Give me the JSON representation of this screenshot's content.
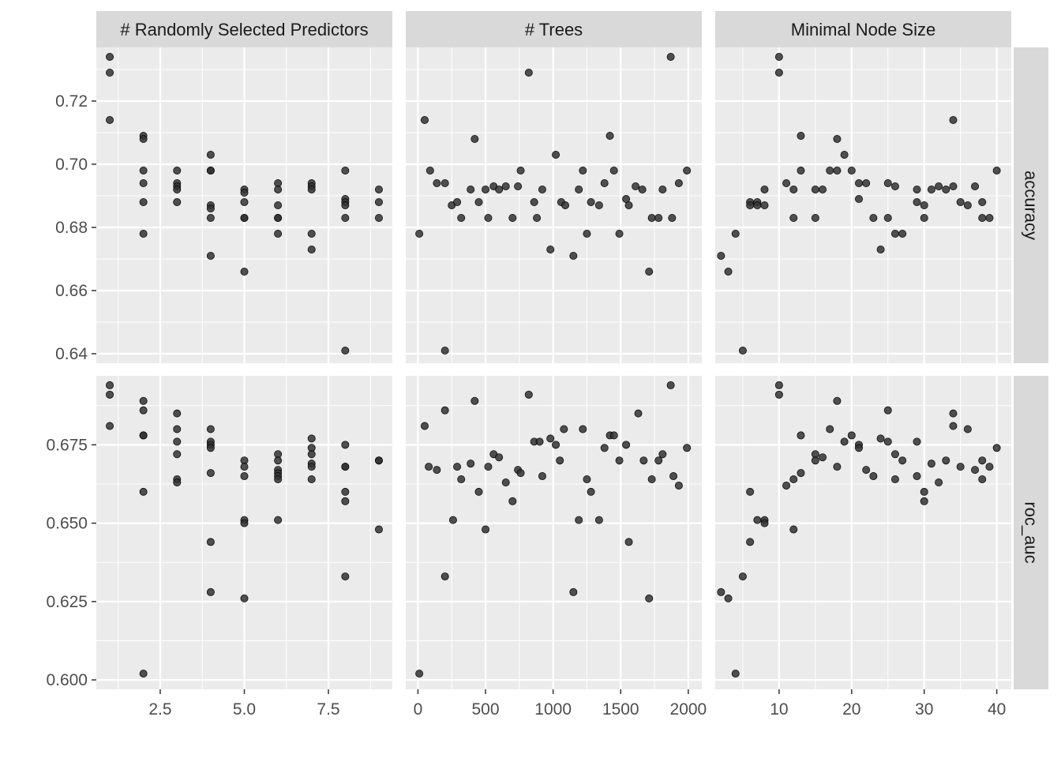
{
  "chart_data": {
    "type": "scatter",
    "facet_columns": [
      "# Randomly Selected Predictors",
      "# Trees",
      "Minimal Node Size"
    ],
    "facet_rows": [
      "accuracy",
      "roc_auc"
    ],
    "x_ticks": [
      [
        "2.5",
        "5.0",
        "7.5"
      ],
      [
        "0",
        "500",
        "1000",
        "1500",
        "2000"
      ],
      [
        "10",
        "20",
        "30",
        "40"
      ]
    ],
    "x_tick_values": [
      [
        2.5,
        5.0,
        7.5
      ],
      [
        0,
        500,
        1000,
        1500,
        2000
      ],
      [
        10,
        20,
        30,
        40
      ]
    ],
    "xlim": [
      [
        0.6,
        9.4
      ],
      [
        -90,
        2100
      ],
      [
        1.2,
        42
      ]
    ],
    "y_ticks": [
      [
        "0.64",
        "0.66",
        "0.68",
        "0.70",
        "0.72"
      ],
      [
        "0.600",
        "0.625",
        "0.650",
        "0.675"
      ]
    ],
    "y_tick_values": [
      [
        0.64,
        0.66,
        0.68,
        0.7,
        0.72
      ],
      [
        0.6,
        0.625,
        0.65,
        0.675
      ]
    ],
    "ylim": [
      [
        0.637,
        0.737
      ],
      [
        0.597,
        0.697
      ]
    ],
    "point_color": "#333333",
    "panel_background": "#ebebeb",
    "strip_background": "#d9d9d9",
    "grid_color": "#ffffff",
    "points": {
      "accuracy": [
        [
          [
            1,
            0.734
          ],
          [
            1,
            0.729
          ],
          [
            1,
            0.714
          ],
          [
            2,
            0.709
          ],
          [
            2,
            0.708
          ],
          [
            2,
            0.698
          ],
          [
            2,
            0.694
          ],
          [
            2,
            0.688
          ],
          [
            2,
            0.678
          ],
          [
            3,
            0.698
          ],
          [
            3,
            0.694
          ],
          [
            3,
            0.693
          ],
          [
            3,
            0.692
          ],
          [
            3,
            0.688
          ],
          [
            4,
            0.703
          ],
          [
            4,
            0.698
          ],
          [
            4,
            0.698
          ],
          [
            4,
            0.687
          ],
          [
            4,
            0.686
          ],
          [
            4,
            0.683
          ],
          [
            4,
            0.671
          ],
          [
            5,
            0.692
          ],
          [
            5,
            0.691
          ],
          [
            5,
            0.688
          ],
          [
            5,
            0.683
          ],
          [
            5,
            0.683
          ],
          [
            5,
            0.666
          ],
          [
            6,
            0.694
          ],
          [
            6,
            0.692
          ],
          [
            6,
            0.687
          ],
          [
            6,
            0.683
          ],
          [
            6,
            0.683
          ],
          [
            6,
            0.678
          ],
          [
            7,
            0.694
          ],
          [
            7,
            0.693
          ],
          [
            7,
            0.692
          ],
          [
            7,
            0.678
          ],
          [
            7,
            0.673
          ],
          [
            8,
            0.698
          ],
          [
            8,
            0.689
          ],
          [
            8,
            0.688
          ],
          [
            8,
            0.687
          ],
          [
            8,
            0.683
          ],
          [
            8,
            0.641
          ],
          [
            9,
            0.692
          ],
          [
            9,
            0.688
          ],
          [
            9,
            0.683
          ]
        ],
        [
          [
            10,
            0.678
          ],
          [
            50,
            0.714
          ],
          [
            90,
            0.698
          ],
          [
            140,
            0.694
          ],
          [
            200,
            0.694
          ],
          [
            200,
            0.641
          ],
          [
            250,
            0.687
          ],
          [
            290,
            0.688
          ],
          [
            320,
            0.683
          ],
          [
            390,
            0.692
          ],
          [
            420,
            0.708
          ],
          [
            450,
            0.688
          ],
          [
            500,
            0.692
          ],
          [
            520,
            0.683
          ],
          [
            560,
            0.693
          ],
          [
            600,
            0.692
          ],
          [
            650,
            0.693
          ],
          [
            700,
            0.683
          ],
          [
            740,
            0.693
          ],
          [
            760,
            0.698
          ],
          [
            820,
            0.729
          ],
          [
            860,
            0.688
          ],
          [
            880,
            0.683
          ],
          [
            920,
            0.692
          ],
          [
            980,
            0.673
          ],
          [
            1020,
            0.703
          ],
          [
            1060,
            0.688
          ],
          [
            1090,
            0.687
          ],
          [
            1150,
            0.671
          ],
          [
            1190,
            0.692
          ],
          [
            1220,
            0.698
          ],
          [
            1250,
            0.678
          ],
          [
            1280,
            0.688
          ],
          [
            1340,
            0.687
          ],
          [
            1380,
            0.694
          ],
          [
            1420,
            0.709
          ],
          [
            1450,
            0.698
          ],
          [
            1490,
            0.678
          ],
          [
            1540,
            0.689
          ],
          [
            1560,
            0.687
          ],
          [
            1610,
            0.693
          ],
          [
            1660,
            0.692
          ],
          [
            1710,
            0.666
          ],
          [
            1730,
            0.683
          ],
          [
            1780,
            0.683
          ],
          [
            1810,
            0.692
          ],
          [
            1870,
            0.734
          ],
          [
            1880,
            0.683
          ],
          [
            1930,
            0.694
          ],
          [
            1990,
            0.698
          ]
        ],
        [
          [
            2,
            0.671
          ],
          [
            3,
            0.666
          ],
          [
            4,
            0.678
          ],
          [
            5,
            0.641
          ],
          [
            6,
            0.688
          ],
          [
            6,
            0.687
          ],
          [
            7,
            0.688
          ],
          [
            7,
            0.687
          ],
          [
            8,
            0.687
          ],
          [
            8,
            0.692
          ],
          [
            10,
            0.734
          ],
          [
            10,
            0.729
          ],
          [
            11,
            0.694
          ],
          [
            12,
            0.692
          ],
          [
            12,
            0.683
          ],
          [
            13,
            0.709
          ],
          [
            13,
            0.698
          ],
          [
            15,
            0.683
          ],
          [
            15,
            0.692
          ],
          [
            16,
            0.692
          ],
          [
            17,
            0.698
          ],
          [
            18,
            0.708
          ],
          [
            18,
            0.698
          ],
          [
            19,
            0.703
          ],
          [
            20,
            0.698
          ],
          [
            21,
            0.694
          ],
          [
            21,
            0.689
          ],
          [
            22,
            0.694
          ],
          [
            23,
            0.683
          ],
          [
            24,
            0.673
          ],
          [
            25,
            0.694
          ],
          [
            25,
            0.683
          ],
          [
            26,
            0.678
          ],
          [
            26,
            0.693
          ],
          [
            27,
            0.678
          ],
          [
            29,
            0.692
          ],
          [
            29,
            0.688
          ],
          [
            30,
            0.687
          ],
          [
            30,
            0.683
          ],
          [
            31,
            0.692
          ],
          [
            32,
            0.693
          ],
          [
            33,
            0.692
          ],
          [
            34,
            0.714
          ],
          [
            34,
            0.693
          ],
          [
            35,
            0.688
          ],
          [
            36,
            0.687
          ],
          [
            37,
            0.693
          ],
          [
            38,
            0.688
          ],
          [
            38,
            0.683
          ],
          [
            39,
            0.683
          ],
          [
            40,
            0.698
          ]
        ]
      ],
      "roc_auc": [
        [
          [
            1,
            0.694
          ],
          [
            1,
            0.691
          ],
          [
            1,
            0.681
          ],
          [
            2,
            0.689
          ],
          [
            2,
            0.686
          ],
          [
            2,
            0.678
          ],
          [
            2,
            0.678
          ],
          [
            2,
            0.66
          ],
          [
            2,
            0.602
          ],
          [
            3,
            0.685
          ],
          [
            3,
            0.68
          ],
          [
            3,
            0.676
          ],
          [
            3,
            0.672
          ],
          [
            3,
            0.664
          ],
          [
            3,
            0.663
          ],
          [
            4,
            0.68
          ],
          [
            4,
            0.676
          ],
          [
            4,
            0.675
          ],
          [
            4,
            0.674
          ],
          [
            4,
            0.666
          ],
          [
            4,
            0.644
          ],
          [
            4,
            0.628
          ],
          [
            5,
            0.67
          ],
          [
            5,
            0.668
          ],
          [
            5,
            0.665
          ],
          [
            5,
            0.651
          ],
          [
            5,
            0.65
          ],
          [
            5,
            0.626
          ],
          [
            6,
            0.672
          ],
          [
            6,
            0.67
          ],
          [
            6,
            0.667
          ],
          [
            6,
            0.666
          ],
          [
            6,
            0.665
          ],
          [
            6,
            0.664
          ],
          [
            6,
            0.651
          ],
          [
            7,
            0.677
          ],
          [
            7,
            0.674
          ],
          [
            7,
            0.672
          ],
          [
            7,
            0.669
          ],
          [
            7,
            0.668
          ],
          [
            7,
            0.664
          ],
          [
            8,
            0.675
          ],
          [
            8,
            0.668
          ],
          [
            8,
            0.668
          ],
          [
            8,
            0.66
          ],
          [
            8,
            0.657
          ],
          [
            8,
            0.633
          ],
          [
            9,
            0.67
          ],
          [
            9,
            0.67
          ],
          [
            9,
            0.648
          ]
        ],
        [
          [
            10,
            0.602
          ],
          [
            50,
            0.681
          ],
          [
            80,
            0.668
          ],
          [
            140,
            0.667
          ],
          [
            200,
            0.686
          ],
          [
            200,
            0.633
          ],
          [
            260,
            0.651
          ],
          [
            290,
            0.668
          ],
          [
            320,
            0.664
          ],
          [
            390,
            0.669
          ],
          [
            420,
            0.689
          ],
          [
            450,
            0.66
          ],
          [
            500,
            0.648
          ],
          [
            520,
            0.668
          ],
          [
            560,
            0.672
          ],
          [
            600,
            0.671
          ],
          [
            650,
            0.663
          ],
          [
            700,
            0.657
          ],
          [
            740,
            0.667
          ],
          [
            760,
            0.666
          ],
          [
            820,
            0.691
          ],
          [
            860,
            0.676
          ],
          [
            900,
            0.676
          ],
          [
            920,
            0.665
          ],
          [
            980,
            0.677
          ],
          [
            1020,
            0.675
          ],
          [
            1050,
            0.67
          ],
          [
            1080,
            0.68
          ],
          [
            1150,
            0.628
          ],
          [
            1190,
            0.651
          ],
          [
            1220,
            0.68
          ],
          [
            1250,
            0.664
          ],
          [
            1280,
            0.66
          ],
          [
            1340,
            0.651
          ],
          [
            1380,
            0.674
          ],
          [
            1420,
            0.678
          ],
          [
            1450,
            0.678
          ],
          [
            1490,
            0.67
          ],
          [
            1540,
            0.675
          ],
          [
            1560,
            0.644
          ],
          [
            1630,
            0.685
          ],
          [
            1670,
            0.67
          ],
          [
            1710,
            0.626
          ],
          [
            1730,
            0.664
          ],
          [
            1780,
            0.67
          ],
          [
            1810,
            0.672
          ],
          [
            1870,
            0.694
          ],
          [
            1890,
            0.665
          ],
          [
            1930,
            0.662
          ],
          [
            1990,
            0.674
          ]
        ],
        [
          [
            2,
            0.628
          ],
          [
            3,
            0.626
          ],
          [
            4,
            0.602
          ],
          [
            5,
            0.633
          ],
          [
            6,
            0.66
          ],
          [
            6,
            0.644
          ],
          [
            7,
            0.651
          ],
          [
            8,
            0.651
          ],
          [
            8,
            0.65
          ],
          [
            10,
            0.694
          ],
          [
            10,
            0.691
          ],
          [
            11,
            0.662
          ],
          [
            12,
            0.664
          ],
          [
            12,
            0.648
          ],
          [
            13,
            0.666
          ],
          [
            13,
            0.678
          ],
          [
            15,
            0.672
          ],
          [
            15,
            0.67
          ],
          [
            16,
            0.671
          ],
          [
            17,
            0.68
          ],
          [
            18,
            0.689
          ],
          [
            18,
            0.668
          ],
          [
            19,
            0.676
          ],
          [
            20,
            0.678
          ],
          [
            21,
            0.675
          ],
          [
            21,
            0.674
          ],
          [
            22,
            0.667
          ],
          [
            23,
            0.665
          ],
          [
            24,
            0.677
          ],
          [
            25,
            0.686
          ],
          [
            25,
            0.676
          ],
          [
            26,
            0.672
          ],
          [
            26,
            0.664
          ],
          [
            27,
            0.67
          ],
          [
            29,
            0.676
          ],
          [
            29,
            0.665
          ],
          [
            30,
            0.66
          ],
          [
            30,
            0.657
          ],
          [
            31,
            0.669
          ],
          [
            32,
            0.663
          ],
          [
            33,
            0.67
          ],
          [
            34,
            0.685
          ],
          [
            34,
            0.681
          ],
          [
            35,
            0.668
          ],
          [
            36,
            0.68
          ],
          [
            37,
            0.667
          ],
          [
            38,
            0.67
          ],
          [
            38,
            0.664
          ],
          [
            39,
            0.668
          ],
          [
            40,
            0.674
          ]
        ]
      ]
    }
  }
}
